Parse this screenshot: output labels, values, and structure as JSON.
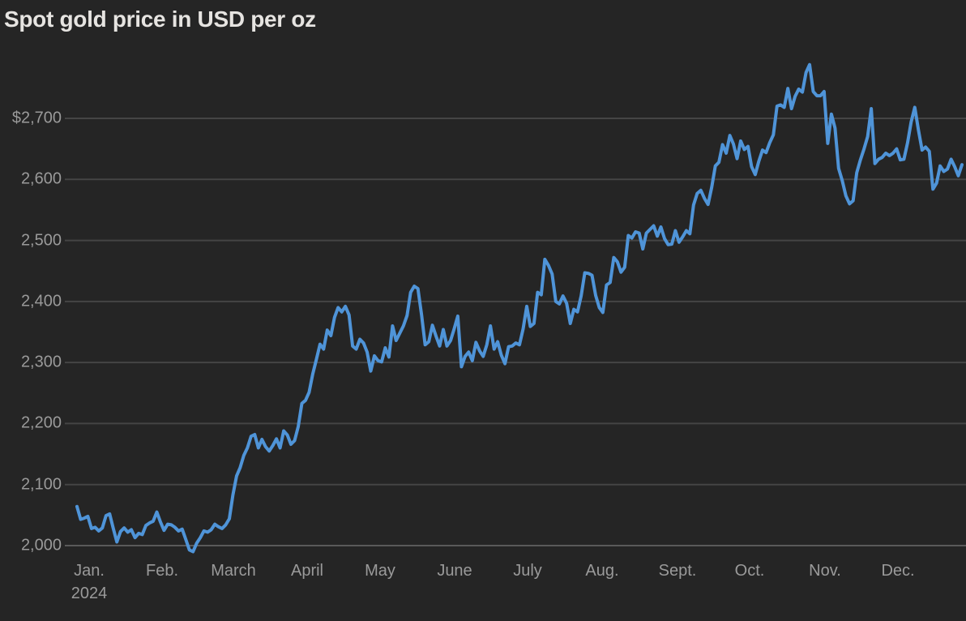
{
  "page": {
    "title": "Spot gold price in USD per oz"
  },
  "colors": {
    "background": "#252525",
    "line": "#4f94d8",
    "grid": "#454545",
    "grid_baseline": "#5a5a5a",
    "title_text": "#e6e4e1",
    "axis_text": "#9a9a9a"
  },
  "chart_data": {
    "type": "line",
    "title": "Spot gold price in USD per oz",
    "ylabel": "",
    "xlabel": "",
    "unit": "USD per oz",
    "grid": "horizontal",
    "legend": "none",
    "ylim": [
      1985,
      2800
    ],
    "y_tick_values": [
      2000,
      2100,
      2200,
      2300,
      2400,
      2500,
      2600,
      2700
    ],
    "y_tick_labels": [
      "2,000",
      "2,100",
      "2,200",
      "2,300",
      "2,400",
      "2,500",
      "2,600",
      "$2,700"
    ],
    "x_tick_labels": [
      "Jan.",
      "Feb.",
      "March",
      "April",
      "May",
      "June",
      "July",
      "Aug.",
      "Sept.",
      "Oct.",
      "Nov.",
      "Dec."
    ],
    "x_axis_year_label": "2024",
    "series": [
      {
        "name": "Spot gold price",
        "values": [
          2064,
          2043,
          2045,
          2048,
          2028,
          2030,
          2024,
          2029,
          2049,
          2052,
          2028,
          2006,
          2023,
          2029,
          2022,
          2026,
          2013,
          2020,
          2018,
          2033,
          2037,
          2040,
          2055,
          2039,
          2025,
          2035,
          2034,
          2030,
          2024,
          2027,
          2010,
          1993,
          1990,
          2004,
          2013,
          2024,
          2022,
          2026,
          2035,
          2031,
          2028,
          2034,
          2044,
          2083,
          2114,
          2128,
          2148,
          2160,
          2179,
          2182,
          2160,
          2174,
          2162,
          2155,
          2164,
          2175,
          2160,
          2188,
          2181,
          2166,
          2172,
          2195,
          2233,
          2238,
          2251,
          2281,
          2305,
          2330,
          2322,
          2353,
          2344,
          2374,
          2390,
          2383,
          2392,
          2378,
          2327,
          2322,
          2338,
          2332,
          2317,
          2286,
          2311,
          2303,
          2301,
          2324,
          2309,
          2360,
          2336,
          2348,
          2360,
          2377,
          2415,
          2425,
          2421,
          2378,
          2329,
          2334,
          2361,
          2343,
          2327,
          2354,
          2327,
          2336,
          2355,
          2376,
          2293,
          2310,
          2317,
          2303,
          2333,
          2319,
          2310,
          2329,
          2360,
          2322,
          2334,
          2312,
          2298,
          2326,
          2327,
          2332,
          2329,
          2355,
          2392,
          2359,
          2364,
          2415,
          2411,
          2469,
          2459,
          2445,
          2400,
          2396,
          2409,
          2397,
          2364,
          2387,
          2383,
          2409,
          2447,
          2446,
          2443,
          2410,
          2390,
          2382,
          2427,
          2431,
          2472,
          2465,
          2448,
          2456,
          2508,
          2504,
          2514,
          2512,
          2486,
          2512,
          2518,
          2524,
          2507,
          2522,
          2503,
          2493,
          2494,
          2516,
          2497,
          2506,
          2516,
          2511,
          2558,
          2577,
          2582,
          2569,
          2559,
          2587,
          2622,
          2628,
          2657,
          2643,
          2672,
          2658,
          2634,
          2663,
          2649,
          2654,
          2621,
          2608,
          2630,
          2648,
          2644,
          2660,
          2673,
          2720,
          2722,
          2718,
          2749,
          2716,
          2736,
          2748,
          2743,
          2775,
          2788,
          2744,
          2737,
          2737,
          2744,
          2659,
          2707,
          2684,
          2618,
          2598,
          2573,
          2560,
          2565,
          2611,
          2632,
          2650,
          2670,
          2716,
          2626,
          2633,
          2636,
          2643,
          2639,
          2643,
          2650,
          2632,
          2633,
          2660,
          2694,
          2718,
          2681,
          2648,
          2653,
          2646,
          2584,
          2594,
          2622,
          2613,
          2617,
          2633,
          2621,
          2606,
          2624
        ]
      }
    ]
  }
}
